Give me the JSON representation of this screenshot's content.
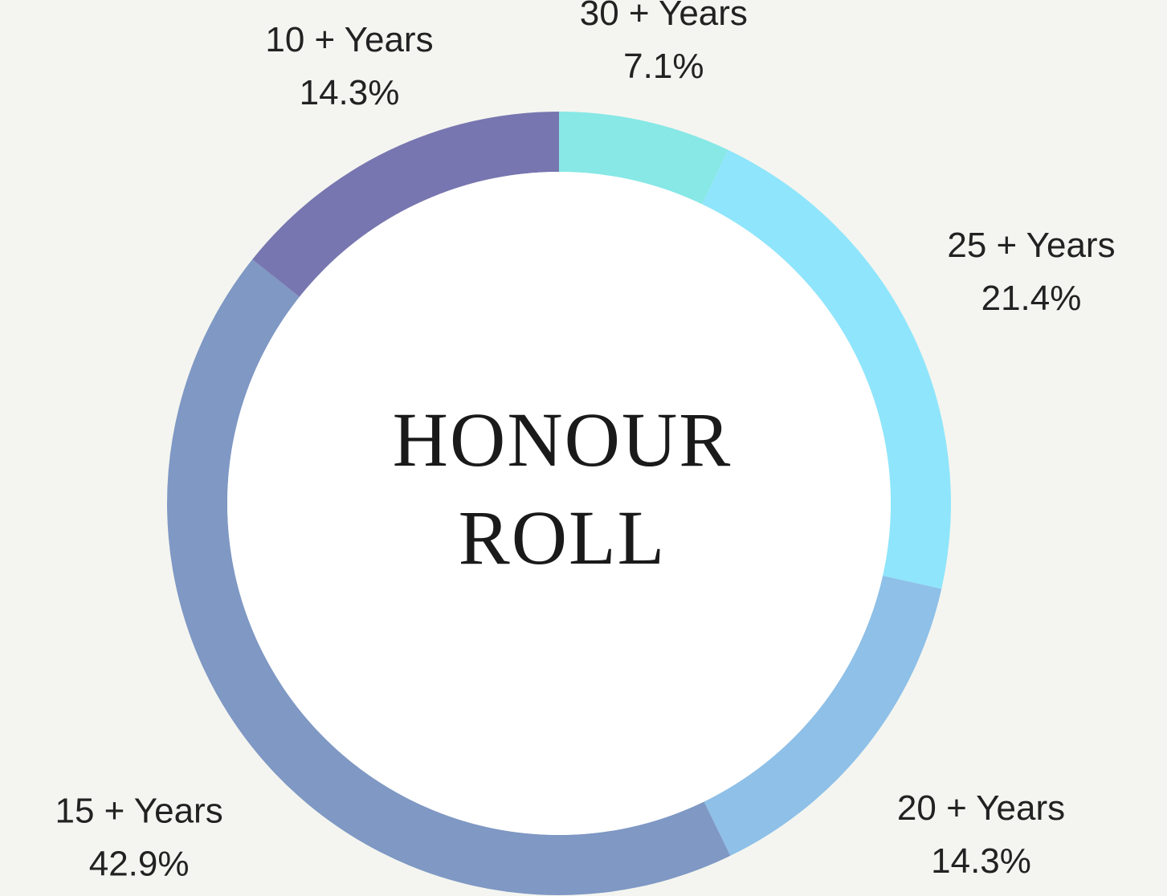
{
  "chart_data": {
    "type": "donut",
    "center_text": [
      "HONOUR",
      "ROLL"
    ],
    "categories": [
      "30 + Years",
      "25 + Years",
      "20 + Years",
      "15 + Years",
      "10 + Years"
    ],
    "values": [
      7.1,
      21.4,
      14.3,
      42.9,
      14.3
    ],
    "value_labels": [
      "7.1%",
      "21.4%",
      "14.3%",
      "42.9%",
      "14.3%"
    ],
    "colors": [
      "#87e8e6",
      "#8fe5fc",
      "#8ec0e8",
      "#7f98c4",
      "#7876b0"
    ]
  }
}
